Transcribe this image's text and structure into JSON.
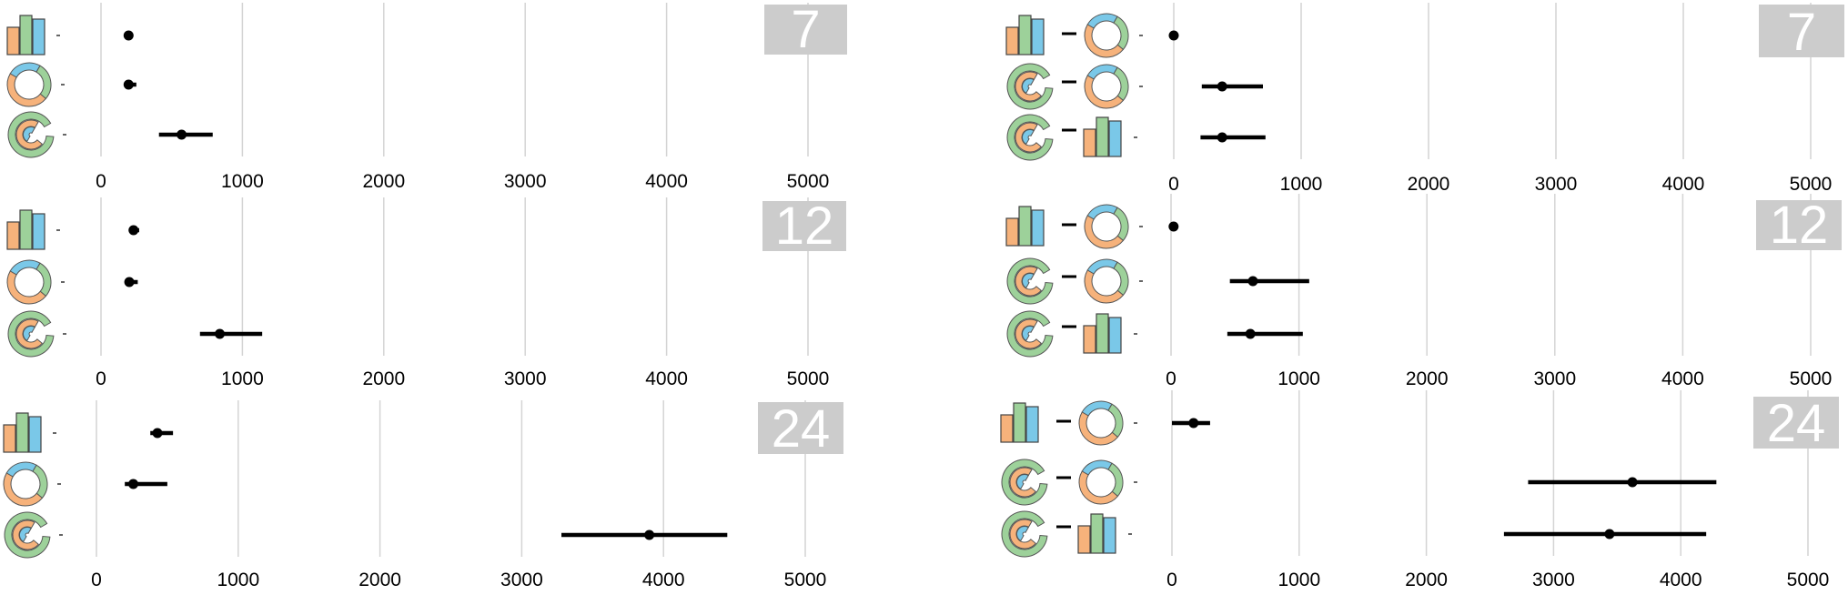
{
  "colors": {
    "orange": "#f6b27b",
    "green": "#9dd19a",
    "blue": "#7ac8e8",
    "badge": "#cccccc",
    "grid": "#d4d4d4"
  },
  "icons": {
    "single": [
      "bar-chart-icon",
      "donut-chart-icon",
      "spiral-chart-icon"
    ],
    "pair": [
      "bar-to-donut-icon",
      "spiral-to-donut-icon",
      "spiral-to-bar-icon"
    ]
  },
  "chart_data": [
    {
      "type": "scatter",
      "panel": "left-7",
      "badge": "7",
      "xlim": [
        0,
        5000
      ],
      "xticks": [
        "0",
        "1000",
        "2000",
        "3000",
        "4000",
        "5000"
      ],
      "grid": true,
      "rows": [
        {
          "icon": "bar-chart-icon",
          "value": 195,
          "ci": [
            180,
            215
          ]
        },
        {
          "icon": "donut-chart-icon",
          "value": 195,
          "ci": [
            170,
            250
          ]
        },
        {
          "icon": "spiral-chart-icon",
          "value": 570,
          "ci": [
            410,
            790
          ]
        }
      ]
    },
    {
      "type": "scatter",
      "panel": "right-7",
      "badge": "7",
      "xlim": [
        0,
        5000
      ],
      "xticks": [
        "0",
        "1000",
        "2000",
        "3000",
        "4000",
        "5000"
      ],
      "grid": true,
      "rows": [
        {
          "icon": "bar-to-donut-icon",
          "value": 0,
          "ci": [
            -20,
            20
          ]
        },
        {
          "icon": "spiral-to-donut-icon",
          "value": 380,
          "ci": [
            220,
            700
          ]
        },
        {
          "icon": "spiral-to-bar-icon",
          "value": 380,
          "ci": [
            210,
            720
          ]
        }
      ]
    },
    {
      "type": "scatter",
      "panel": "left-12",
      "badge": "12",
      "xlim": [
        0,
        5000
      ],
      "xticks": [
        "0",
        "1000",
        "2000",
        "3000",
        "4000",
        "5000"
      ],
      "grid": true,
      "rows": [
        {
          "icon": "bar-chart-icon",
          "value": 230,
          "ci": [
            210,
            270
          ]
        },
        {
          "icon": "donut-chart-icon",
          "value": 200,
          "ci": [
            170,
            260
          ]
        },
        {
          "icon": "spiral-chart-icon",
          "value": 840,
          "ci": [
            700,
            1140
          ]
        }
      ]
    },
    {
      "type": "scatter",
      "panel": "right-12",
      "badge": "12",
      "xlim": [
        0,
        5000
      ],
      "xticks": [
        "0",
        "1000",
        "2000",
        "3000",
        "4000",
        "5000"
      ],
      "grid": true,
      "rows": [
        {
          "icon": "bar-to-donut-icon",
          "value": 20,
          "ci": [
            0,
            40
          ]
        },
        {
          "icon": "spiral-to-donut-icon",
          "value": 640,
          "ci": [
            460,
            1080
          ]
        },
        {
          "icon": "spiral-to-bar-icon",
          "value": 620,
          "ci": [
            440,
            1030
          ]
        }
      ]
    },
    {
      "type": "scatter",
      "panel": "left-24",
      "badge": "24",
      "xlim": [
        0,
        5000
      ],
      "xticks": [
        "0",
        "1000",
        "2000",
        "3000",
        "4000",
        "5000"
      ],
      "grid": true,
      "rows": [
        {
          "icon": "bar-chart-icon",
          "value": 430,
          "ci": [
            380,
            540
          ]
        },
        {
          "icon": "donut-chart-icon",
          "value": 260,
          "ci": [
            200,
            500
          ]
        },
        {
          "icon": "spiral-chart-icon",
          "value": 3900,
          "ci": [
            3280,
            4450
          ]
        }
      ]
    },
    {
      "type": "scatter",
      "panel": "right-24",
      "badge": "24",
      "xlim": [
        0,
        5000
      ],
      "xticks": [
        "0",
        "1000",
        "2000",
        "3000",
        "4000",
        "5000"
      ],
      "grid": true,
      "rows": [
        {
          "icon": "bar-to-donut-icon",
          "value": 170,
          "ci": [
            0,
            300
          ]
        },
        {
          "icon": "spiral-to-donut-icon",
          "value": 3620,
          "ci": [
            2800,
            4280
          ]
        },
        {
          "icon": "spiral-to-bar-icon",
          "value": 3440,
          "ci": [
            2610,
            4200
          ]
        }
      ]
    }
  ]
}
